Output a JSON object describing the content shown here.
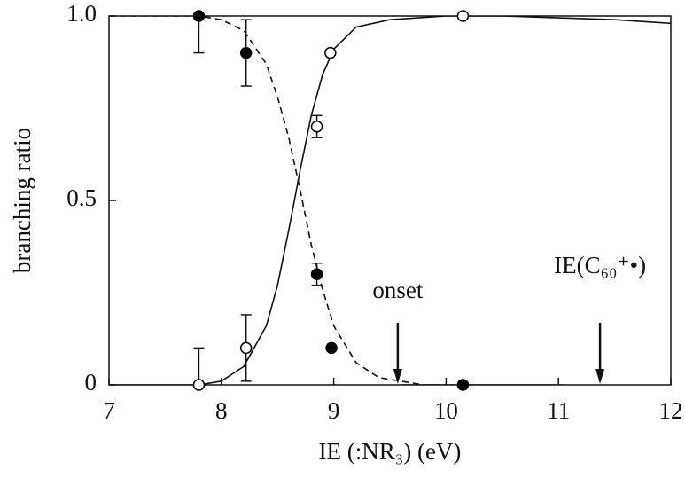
{
  "chart_data": {
    "type": "scatter",
    "xlabel": "IE (:NR₃) (eV)",
    "ylabel": "branching ratio",
    "xlim": [
      7,
      12
    ],
    "xticks": [
      7,
      8,
      9,
      10,
      11,
      12
    ],
    "ylim": [
      0,
      1
    ],
    "yticks": [
      0,
      0.5,
      {
        "value": 1,
        "label": "1.0"
      }
    ],
    "series": [
      {
        "marker": "filled",
        "color": "#000000",
        "x": [
          7.8,
          8.22,
          8.85,
          8.98,
          10.15
        ],
        "values": [
          1.0,
          0.9,
          0.3,
          0.1,
          0
        ],
        "errors": [
          0.1,
          0.09,
          0.03,
          null,
          null
        ]
      },
      {
        "marker": "open",
        "color": "#000000",
        "x": [
          7.8,
          8.22,
          8.85,
          8.97,
          10.15
        ],
        "values": [
          0,
          0.1,
          0.7,
          0.9,
          1.0
        ],
        "errors": [
          0.1,
          0.09,
          0.03,
          null,
          null
        ]
      }
    ],
    "fits": [
      {
        "dashed": false,
        "x": [
          7,
          7.5,
          7.8,
          8.0,
          8.2,
          8.4,
          8.5,
          8.6,
          8.7,
          8.8,
          8.9,
          9.0,
          9.2,
          9.5,
          10,
          10.5,
          11,
          11.5,
          12
        ],
        "values": [
          0,
          0,
          0,
          0.01,
          0.05,
          0.16,
          0.27,
          0.42,
          0.58,
          0.73,
          0.84,
          0.91,
          0.97,
          0.99,
          1,
          1,
          0.995,
          0.99,
          0.98
        ]
      },
      {
        "dashed": true,
        "x": [
          7,
          7.5,
          7.8,
          8.0,
          8.2,
          8.4,
          8.5,
          8.6,
          8.7,
          8.8,
          8.9,
          9.0,
          9.2,
          9.4,
          9.6,
          9.8,
          10
        ],
        "values": [
          1,
          1,
          1,
          0.99,
          0.96,
          0.87,
          0.78,
          0.67,
          0.53,
          0.38,
          0.26,
          0.16,
          0.06,
          0.02,
          0.01,
          0,
          0
        ]
      },
      {
        "dashed": false,
        "x": [
          9.6,
          10,
          11,
          12
        ],
        "values": [
          0,
          0,
          0,
          -0.01
        ]
      }
    ],
    "annotations": [
      {
        "text": "onset",
        "x": 9.57
      },
      {
        "text": "IE(C₆₀⁺•)",
        "x": 11.37
      }
    ]
  }
}
